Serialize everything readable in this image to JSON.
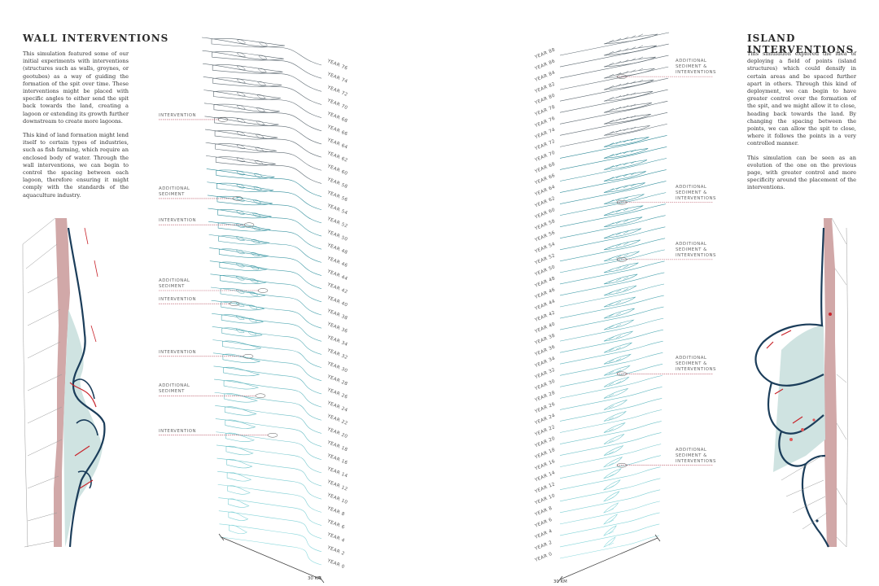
{
  "left": {
    "title": "WALL INTERVENTIONS",
    "paragraph_1": "This simulation featured some of our initial experiments with interventions (structures such as walls, groynes, or geotubes) as a way of guiding the formation of the spit over time. These interventions might be placed with specific angles to either send the spit back towards the land, creating a lagoon or extending its growth further downstream to create more lagoons.",
    "paragraph_2": "This kind of land formation might lend itself to certain types of industries, such as fish farming, which require an enclosed body of water. Through the wall interventions, we can begin to control the spacing between each lagoon, therefore ensuring it might comply with the standards of the aquaculture industry.",
    "annotations": [
      {
        "label": "INTERVENTION",
        "year": 64
      },
      {
        "label": "ADDITIONAL\nSEDIMENT",
        "year": 52
      },
      {
        "label": "INTERVENTION",
        "year": 48
      },
      {
        "label": "ADDITIONAL\nSEDIMENT",
        "year": 38
      },
      {
        "label": "INTERVENTION",
        "year": 36
      },
      {
        "label": "INTERVENTION",
        "year": 28
      },
      {
        "label": "ADDITIONAL\nSEDIMENT",
        "year": 22
      },
      {
        "label": "INTERVENTION",
        "year": 16
      }
    ],
    "scale_label": "30 KM",
    "years": [
      76,
      74,
      72,
      70,
      68,
      66,
      64,
      62,
      60,
      58,
      56,
      54,
      52,
      50,
      48,
      46,
      44,
      42,
      40,
      38,
      36,
      34,
      32,
      30,
      28,
      26,
      24,
      22,
      20,
      18,
      16,
      14,
      12,
      10,
      8,
      6,
      4,
      2,
      0
    ]
  },
  "right": {
    "title": "ISLAND INTERVENTIONS",
    "paragraph_1": "This simulation explored the idea of deploying a field of points (island structures) which could densify in certain areas and be spaced further apart in others. Through this kind of deployment, we can begin to have greater control over the formation of the spit, and we might allow it to close, heading back towards the land. By changing the spacing between the points, we can allow the spit to close, where it follows the points in a very controlled manner.",
    "paragraph_2": "This simulation can be seen as an evolution of the one on the previous page, with greater control and more specificity around the placement of the interventions.",
    "annotations": [
      {
        "label": "ADDITIONAL\nSEDIMENT &\nINTERVENTIONS",
        "year": 82
      },
      {
        "label": "ADDITIONAL\nSEDIMENT &\nINTERVENTIONS",
        "year": 60
      },
      {
        "label": "ADDITIONAL\nSEDIMENT &\nINTERVENTIONS",
        "year": 50
      },
      {
        "label": "ADDITIONAL\nSEDIMENT &\nINTERVENTIONS",
        "year": 30
      },
      {
        "label": "ADDITIONAL\nSEDIMENT &\nINTERVENTIONS",
        "year": 14
      }
    ],
    "scale_label": "30 KM",
    "years": [
      88,
      86,
      84,
      82,
      80,
      78,
      76,
      74,
      72,
      70,
      68,
      66,
      64,
      62,
      60,
      58,
      56,
      54,
      52,
      50,
      48,
      46,
      44,
      42,
      40,
      38,
      36,
      34,
      32,
      30,
      28,
      26,
      24,
      22,
      20,
      18,
      16,
      14,
      12,
      10,
      8,
      6,
      4,
      2,
      0
    ]
  },
  "year_prefix": "YEAR",
  "colors": {
    "teal_dark": "#1f6f82",
    "teal_light": "#7fd3d8",
    "outline_dark": "#1b3d5a",
    "lagoon_fill": "#cfe3e1",
    "land_pink": "#c99999",
    "red_accent": "#c8242b",
    "annotation_line": "#b5495b"
  }
}
